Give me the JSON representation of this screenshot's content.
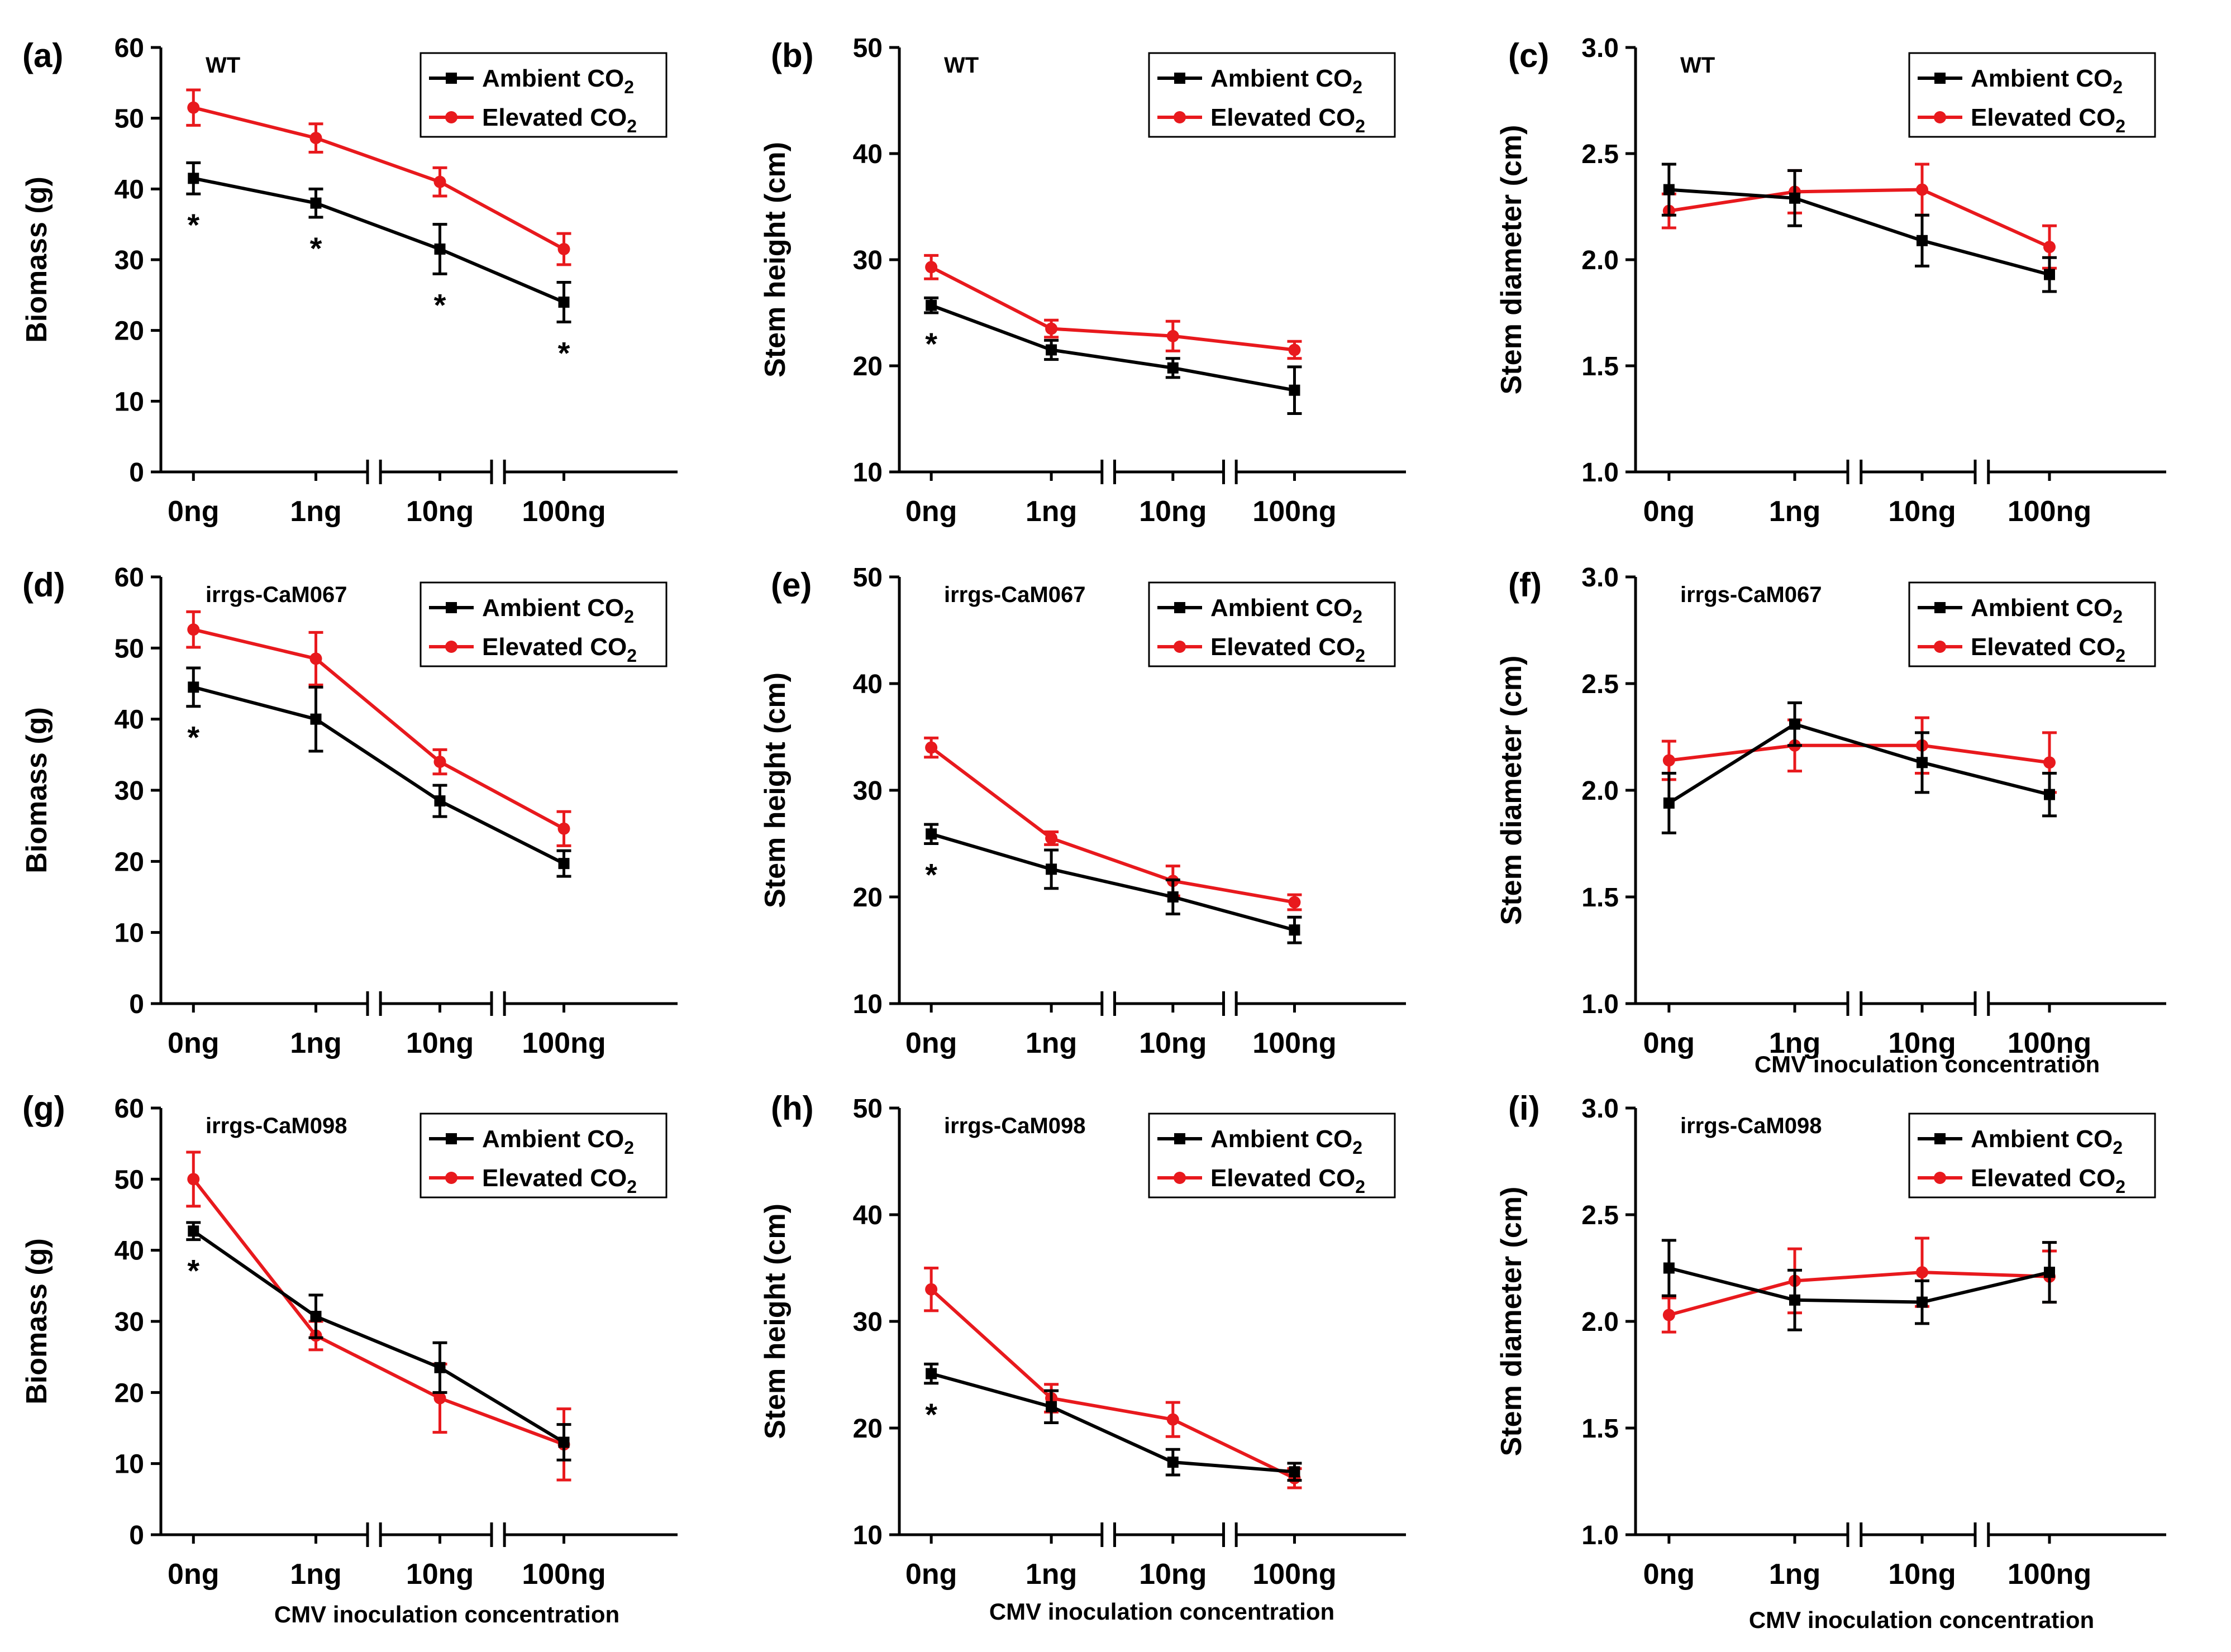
{
  "xlabel": "CMV inoculation concentration",
  "colors": {
    "ambient": "#000000",
    "elevated": "#e8191d"
  },
  "chart_data": [
    {
      "tag": "(a)",
      "type": "line",
      "subtitle": "WT",
      "ylabel": "Biomass (g)",
      "ylim": [
        0,
        60
      ],
      "yticks": [
        "0",
        "10",
        "20",
        "30",
        "40",
        "50",
        "60"
      ],
      "categories": [
        "0ng",
        "1ng",
        "10ng",
        "100ng"
      ],
      "series": [
        {
          "name": "Ambient CO",
          "sub": "2",
          "values": [
            41.5,
            38,
            31.5,
            24
          ],
          "errors": [
            2.2,
            2,
            3.5,
            2.8
          ]
        },
        {
          "name": "Elevated CO",
          "sub": "2",
          "values": [
            51.5,
            47.2,
            41,
            31.5
          ],
          "errors": [
            2.5,
            2,
            2,
            2.2
          ]
        }
      ],
      "stars": [
        "*",
        "*",
        "*",
        "*"
      ]
    },
    {
      "tag": "(b)",
      "type": "line",
      "subtitle": "WT",
      "ylabel": "Stem height (cm)",
      "ylim": [
        10,
        50
      ],
      "yticks": [
        "10",
        "20",
        "30",
        "40",
        "50"
      ],
      "categories": [
        "0ng",
        "1ng",
        "10ng",
        "100ng"
      ],
      "series": [
        {
          "name": "Ambient CO",
          "sub": "2",
          "values": [
            25.7,
            21.5,
            19.8,
            17.7
          ],
          "errors": [
            0.7,
            0.9,
            0.9,
            2.2
          ]
        },
        {
          "name": "Elevated CO",
          "sub": "2",
          "values": [
            29.3,
            23.5,
            22.8,
            21.5
          ],
          "errors": [
            1.1,
            0.8,
            1.4,
            0.8
          ]
        }
      ],
      "stars": [
        "*",
        "",
        "",
        ""
      ]
    },
    {
      "tag": "(c)",
      "type": "line",
      "subtitle": "WT",
      "ylabel": "Stem diameter (cm)",
      "ylim": [
        1.0,
        3.0
      ],
      "yticks": [
        "1.0",
        "1.5",
        "2.0",
        "2.5",
        "3.0"
      ],
      "categories": [
        "0ng",
        "1ng",
        "10ng",
        "100ng"
      ],
      "series": [
        {
          "name": "Ambient CO",
          "sub": "2",
          "values": [
            2.33,
            2.29,
            2.09,
            1.93
          ],
          "errors": [
            0.12,
            0.13,
            0.12,
            0.08
          ]
        },
        {
          "name": "Elevated CO",
          "sub": "2",
          "values": [
            2.23,
            2.32,
            2.33,
            2.06
          ],
          "errors": [
            0.08,
            0.1,
            0.12,
            0.1
          ]
        }
      ],
      "stars": [
        "",
        "",
        "",
        ""
      ]
    },
    {
      "tag": "(d)",
      "type": "line",
      "subtitle": "irrgs-CaM067",
      "ylabel": "Biomass (g)",
      "ylim": [
        0,
        60
      ],
      "yticks": [
        "0",
        "10",
        "20",
        "30",
        "40",
        "50",
        "60"
      ],
      "categories": [
        "0ng",
        "1ng",
        "10ng",
        "100ng"
      ],
      "series": [
        {
          "name": "Ambient CO",
          "sub": "2",
          "values": [
            44.5,
            40,
            28.5,
            19.7
          ],
          "errors": [
            2.7,
            4.5,
            2.2,
            1.8
          ]
        },
        {
          "name": "Elevated CO",
          "sub": "2",
          "values": [
            52.6,
            48.5,
            34,
            24.6
          ],
          "errors": [
            2.5,
            3.7,
            1.7,
            2.4
          ]
        }
      ],
      "stars": [
        "*",
        "",
        "",
        ""
      ]
    },
    {
      "tag": "(e)",
      "type": "line",
      "subtitle": "irrgs-CaM067",
      "ylabel": "Stem height (cm)",
      "ylim": [
        10,
        50
      ],
      "yticks": [
        "10",
        "20",
        "30",
        "40",
        "50"
      ],
      "categories": [
        "0ng",
        "1ng",
        "10ng",
        "100ng"
      ],
      "series": [
        {
          "name": "Ambient CO",
          "sub": "2",
          "values": [
            25.9,
            22.6,
            20,
            16.9
          ],
          "errors": [
            0.9,
            1.8,
            1.6,
            1.2
          ]
        },
        {
          "name": "Elevated CO",
          "sub": "2",
          "values": [
            34,
            25.5,
            21.5,
            19.5
          ],
          "errors": [
            0.9,
            0.6,
            1.4,
            0.7
          ]
        }
      ],
      "stars": [
        "*",
        "",
        "",
        ""
      ]
    },
    {
      "tag": "(f)",
      "type": "line",
      "subtitle": "irrgs-CaM067",
      "ylabel": "Stem diameter (cm)",
      "ylim": [
        1.0,
        3.0
      ],
      "yticks": [
        "1.0",
        "1.5",
        "2.0",
        "2.5",
        "3.0"
      ],
      "categories": [
        "0ng",
        "1ng",
        "10ng",
        "100ng"
      ],
      "series": [
        {
          "name": "Ambient CO",
          "sub": "2",
          "values": [
            1.94,
            2.31,
            2.13,
            1.98
          ],
          "errors": [
            0.14,
            0.1,
            0.14,
            0.1
          ]
        },
        {
          "name": "Elevated CO",
          "sub": "2",
          "values": [
            2.14,
            2.21,
            2.21,
            2.13
          ],
          "errors": [
            0.09,
            0.12,
            0.13,
            0.14
          ]
        }
      ],
      "stars": [
        "",
        "",
        "",
        ""
      ]
    },
    {
      "tag": "(g)",
      "type": "line",
      "subtitle": "irrgs-CaM098",
      "ylabel": "Biomass (g)",
      "ylim": [
        0,
        60
      ],
      "yticks": [
        "0",
        "10",
        "20",
        "30",
        "40",
        "50",
        "60"
      ],
      "categories": [
        "0ng",
        "1ng",
        "10ng",
        "100ng"
      ],
      "series": [
        {
          "name": "Ambient CO",
          "sub": "2",
          "values": [
            42.7,
            30.7,
            23.5,
            13
          ],
          "errors": [
            1.2,
            3,
            3.5,
            2.5
          ]
        },
        {
          "name": "Elevated CO",
          "sub": "2",
          "values": [
            50,
            28,
            19.2,
            12.7
          ],
          "errors": [
            3.8,
            2,
            4.8,
            5
          ]
        }
      ],
      "stars": [
        "*",
        "",
        "",
        ""
      ]
    },
    {
      "tag": "(h)",
      "type": "line",
      "subtitle": "irrgs-CaM098",
      "ylabel": "Stem height (cm)",
      "ylim": [
        10,
        50
      ],
      "yticks": [
        "10",
        "20",
        "30",
        "40",
        "50"
      ],
      "categories": [
        "0ng",
        "1ng",
        "10ng",
        "100ng"
      ],
      "series": [
        {
          "name": "Ambient CO",
          "sub": "2",
          "values": [
            25.1,
            22,
            16.8,
            15.9
          ],
          "errors": [
            0.9,
            1.5,
            1.2,
            0.8
          ]
        },
        {
          "name": "Elevated CO",
          "sub": "2",
          "values": [
            33,
            22.8,
            20.8,
            15.3
          ],
          "errors": [
            2,
            1.3,
            1.6,
            0.9
          ]
        }
      ],
      "stars": [
        "*",
        "",
        "",
        ""
      ]
    },
    {
      "tag": "(i)",
      "type": "line",
      "subtitle": "irrgs-CaM098",
      "ylabel": "Stem diameter (cm)",
      "ylim": [
        1.0,
        3.0
      ],
      "yticks": [
        "1.0",
        "1.5",
        "2.0",
        "2.5",
        "3.0"
      ],
      "categories": [
        "0ng",
        "1ng",
        "10ng",
        "100ng"
      ],
      "series": [
        {
          "name": "Ambient CO",
          "sub": "2",
          "values": [
            2.25,
            2.1,
            2.09,
            2.23
          ],
          "errors": [
            0.13,
            0.14,
            0.1,
            0.14
          ]
        },
        {
          "name": "Elevated CO",
          "sub": "2",
          "values": [
            2.03,
            2.19,
            2.23,
            2.21
          ],
          "errors": [
            0.08,
            0.15,
            0.16,
            0.12
          ]
        }
      ],
      "stars": [
        "",
        "",
        "",
        ""
      ]
    }
  ]
}
